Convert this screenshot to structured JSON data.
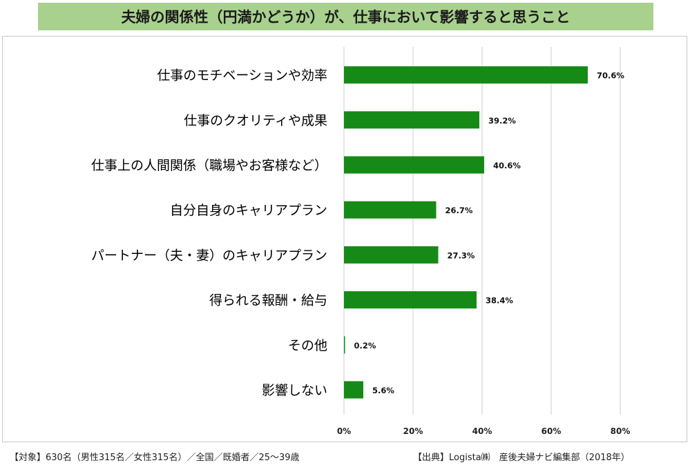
{
  "title": "夫婦の関係性（円満かどうか）が、仕事において影響すると思うこと",
  "footer": {
    "subject": "【対象】630名（男性315名／女性315名）／全国／既婚者／25〜39歳",
    "source": "【出典】Logista㈱　産後夫婦ナビ編集部（2018年）"
  },
  "colors": {
    "bar": "#168a16",
    "title_bg": "#a9d18e",
    "grid": "#d9d9d9"
  },
  "chart_data": {
    "type": "bar",
    "orientation": "horizontal",
    "title": "夫婦の関係性（円満かどうか）が、仕事において影響すると思うこと",
    "categories": [
      "仕事のモチベーションや効率",
      "仕事のクオリティや成果",
      "仕事上の人間関係（職場やお客様など）",
      "自分自身のキャリアプラン",
      "パートナー（夫・妻）のキャリアプラン",
      "得られる報酬・給与",
      "その他",
      "影響しない"
    ],
    "values": [
      70.6,
      39.2,
      40.6,
      26.7,
      27.3,
      38.4,
      0.2,
      5.6
    ],
    "value_labels": [
      "70.6%",
      "39.2%",
      "40.6%",
      "26.7%",
      "27.3%",
      "38.4%",
      "0.2%",
      "5.6%"
    ],
    "xlim": [
      0,
      80
    ],
    "xticks": [
      0,
      20,
      40,
      60,
      80
    ],
    "xtick_labels": [
      "0%",
      "20%",
      "40%",
      "60%",
      "80%"
    ],
    "xlabel": "",
    "ylabel": "",
    "grid": true,
    "legend": "none"
  }
}
